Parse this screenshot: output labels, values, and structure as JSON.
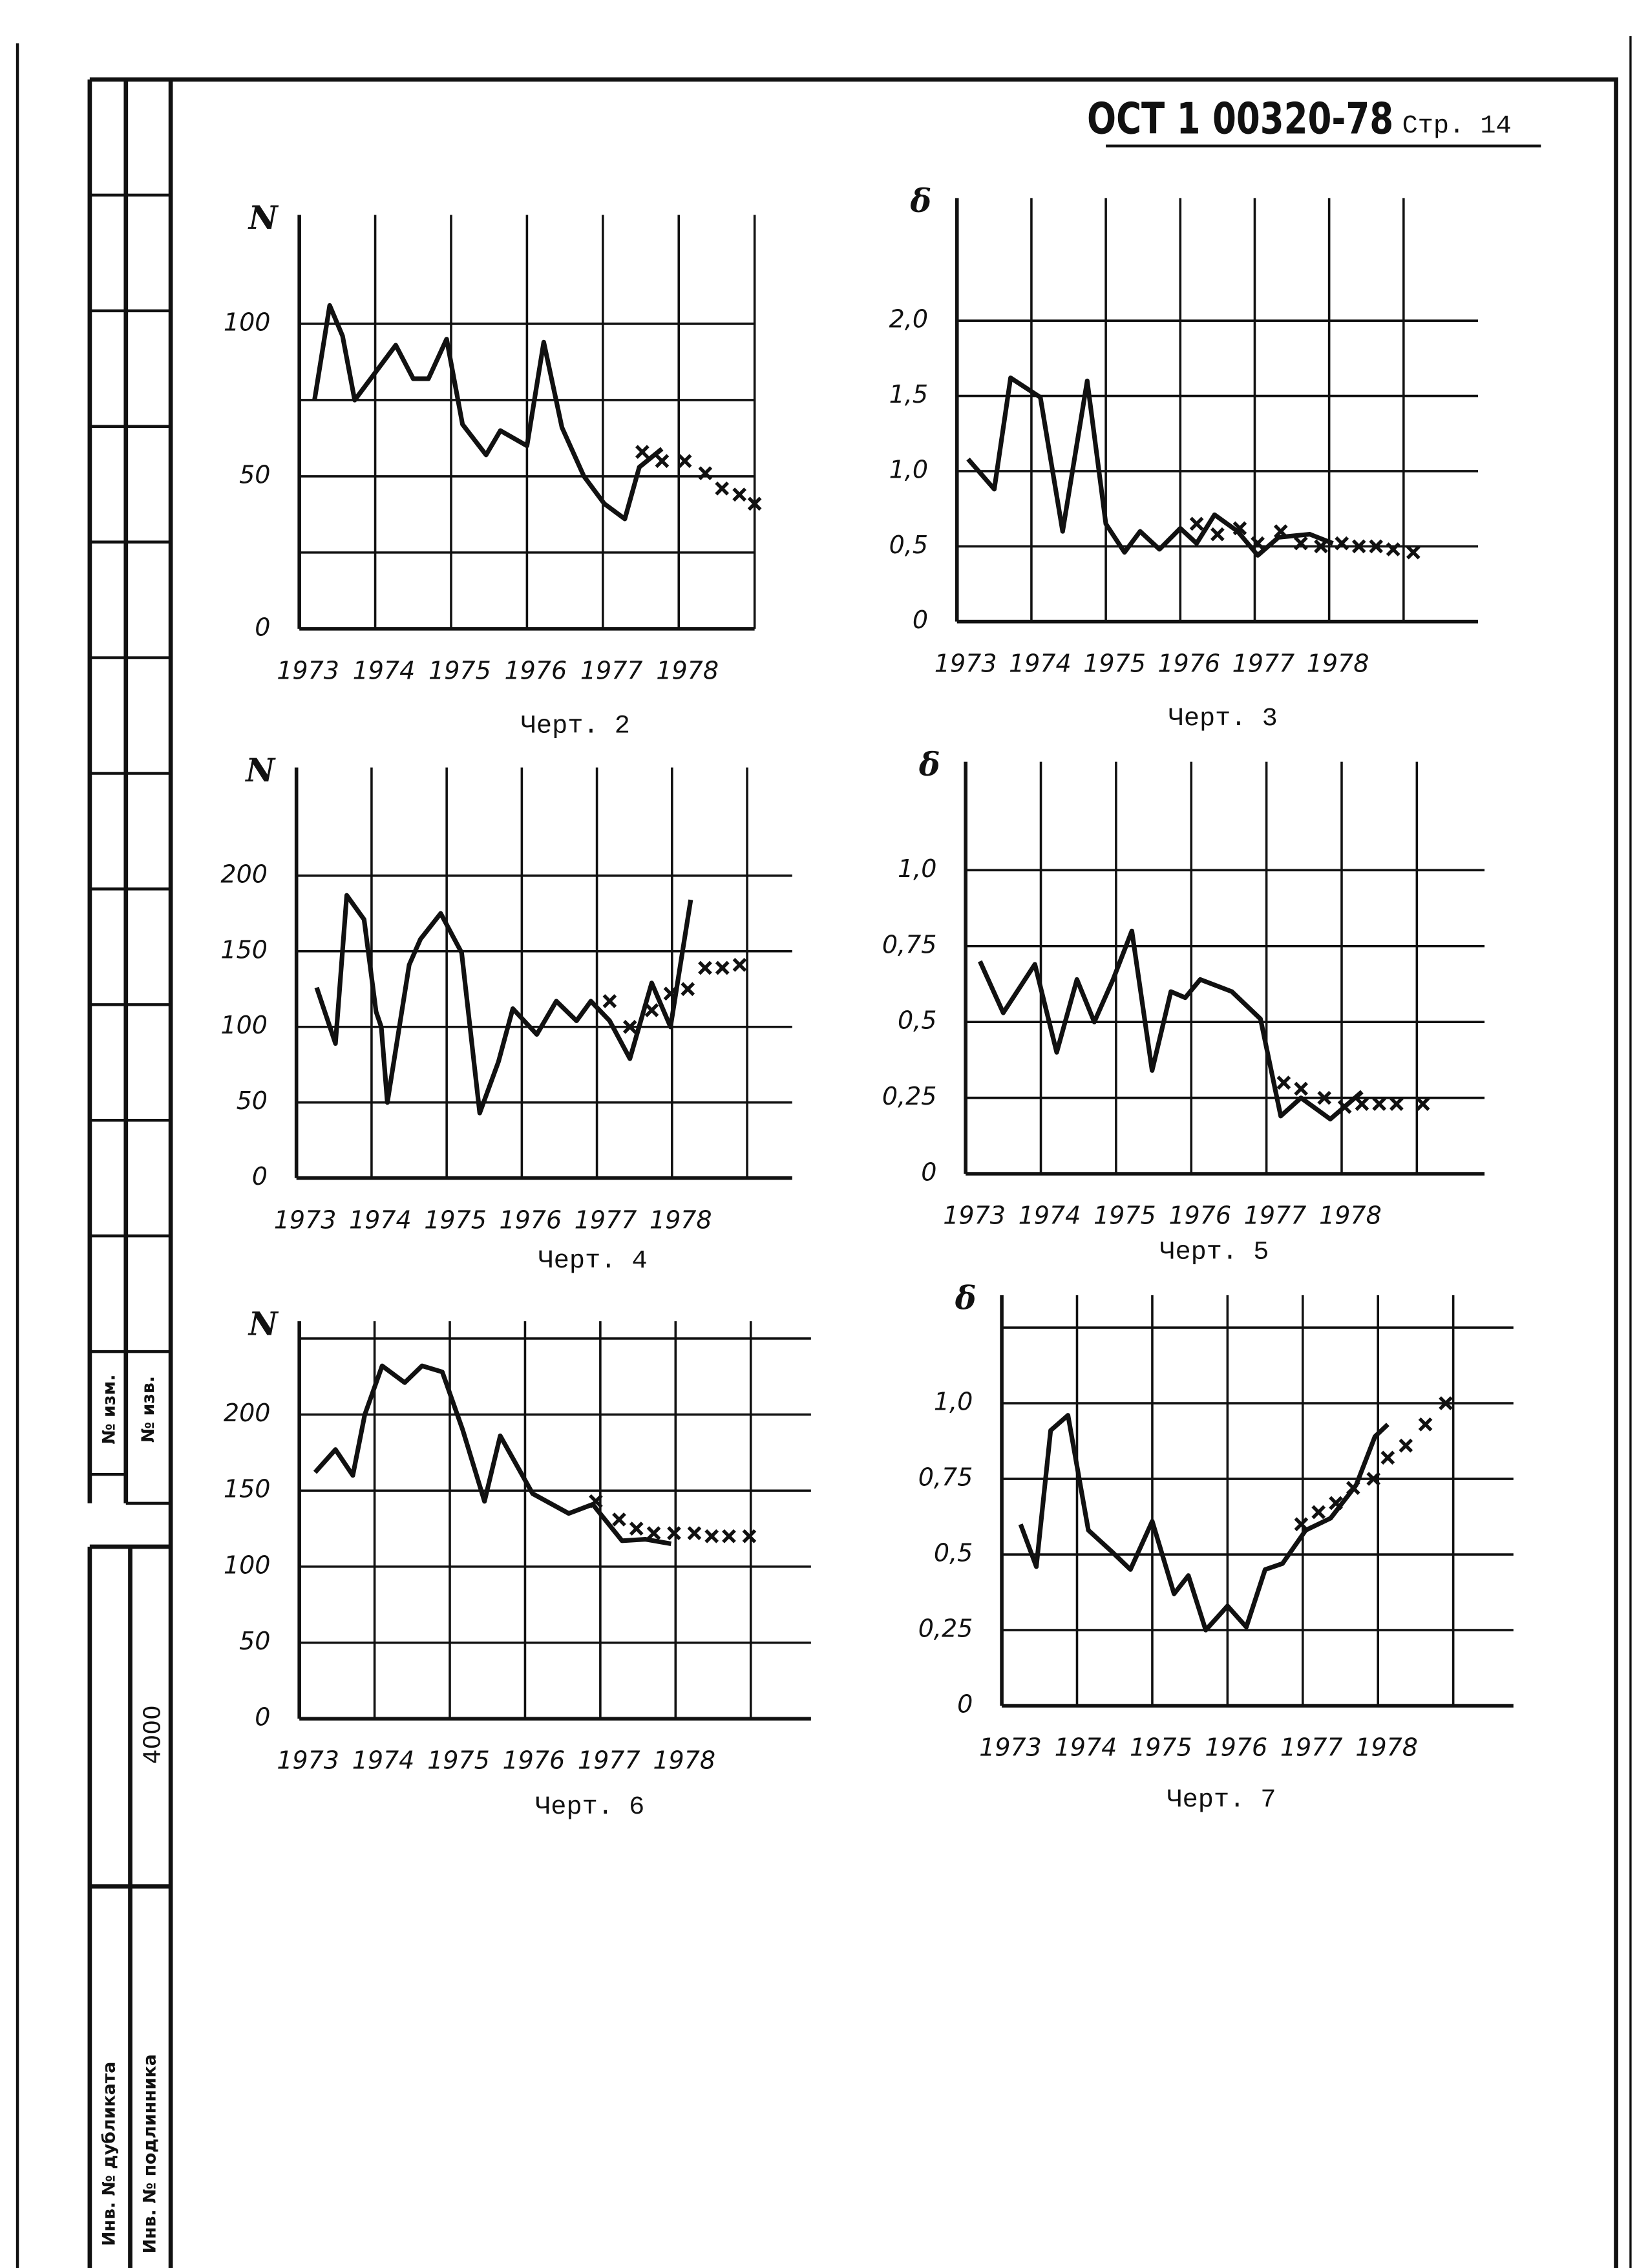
{
  "header": {
    "code": "ОСТ 1 00320-78",
    "page": "Стр. 14"
  },
  "side": {
    "change_no": "№ изм.",
    "notice_no": "№ изв.",
    "number": "4000",
    "dup_inv": "Инв. № дубликата",
    "orig_inv": "Инв. № подлинника"
  },
  "chart_data": [
    {
      "type": "line",
      "title": "Черт. 2",
      "y_label": "N",
      "xlim": [
        1973,
        1979
      ],
      "ylim": [
        0,
        130
      ],
      "xticks": [
        1973,
        1974,
        1975,
        1976,
        1977,
        1978
      ],
      "xgrid": [
        1973,
        1974,
        1975,
        1976,
        1977,
        1978,
        1979
      ],
      "yticks": [
        0,
        50,
        100
      ],
      "ygrid": [
        25,
        75
      ],
      "series": [
        {
          "marker": "line",
          "color": "#111111",
          "x": [
            1973.2,
            1973.4,
            1973.57,
            1973.73,
            1974.27,
            1974.5,
            1974.7,
            1974.94,
            1975.15,
            1975.46,
            1975.65,
            1976.0,
            1976.22,
            1976.46,
            1976.75,
            1977.02,
            1977.29,
            1977.48,
            1977.78
          ],
          "values": [
            75,
            106,
            96,
            75,
            93,
            82,
            82,
            95,
            67,
            57,
            65,
            60,
            94,
            66,
            50,
            41,
            36,
            53,
            59
          ]
        },
        {
          "marker": "cross",
          "color": "#111111",
          "x": [
            1977.52,
            1977.78,
            1978.08,
            1978.35,
            1978.57,
            1978.8,
            1979.0
          ],
          "values": [
            58,
            55,
            55,
            51,
            46,
            44,
            41
          ]
        }
      ]
    },
    {
      "type": "line",
      "title": "Черт. 3",
      "y_label": "δ",
      "xlim": [
        1973,
        1980
      ],
      "ylim": [
        0,
        2.7
      ],
      "xticks": [
        1973,
        1974,
        1975,
        1976,
        1977,
        1978
      ],
      "xgrid": [
        1973,
        1974,
        1975,
        1976,
        1977,
        1978,
        1979
      ],
      "yticks": [
        0,
        {
          "value": 0.5,
          "label": "0,5"
        },
        {
          "value": 1.0,
          "label": "1,0"
        },
        {
          "value": 1.5,
          "label": "1,5"
        },
        {
          "value": 2.0,
          "label": "2,0"
        }
      ],
      "series": [
        {
          "marker": "line",
          "color": "#111111",
          "x": [
            1973.15,
            1973.5,
            1973.72,
            1974.12,
            1974.42,
            1974.75,
            1975.0,
            1975.25,
            1975.46,
            1975.72,
            1976.0,
            1976.22,
            1976.46,
            1976.77,
            1977.04,
            1977.32,
            1977.74,
            1978.05
          ],
          "values": [
            1.08,
            0.88,
            1.62,
            1.49,
            0.6,
            1.6,
            0.65,
            0.46,
            0.6,
            0.48,
            0.62,
            0.52,
            0.71,
            0.6,
            0.44,
            0.56,
            0.58,
            0.52
          ]
        },
        {
          "marker": "cross",
          "color": "#111111",
          "x": [
            1976.22,
            1976.5,
            1976.8,
            1977.04,
            1977.35,
            1977.62,
            1977.89,
            1978.17,
            1978.4,
            1978.63,
            1978.86,
            1979.13
          ],
          "values": [
            0.65,
            0.58,
            0.62,
            0.52,
            0.6,
            0.52,
            0.5,
            0.52,
            0.5,
            0.5,
            0.48,
            0.46
          ]
        }
      ]
    },
    {
      "type": "line",
      "title": "Черт. 4",
      "y_label": "N",
      "xlim": [
        1973,
        1979.6
      ],
      "ylim": [
        0,
        260
      ],
      "xticks": [
        1973,
        1974,
        1975,
        1976,
        1977,
        1978
      ],
      "xgrid": [
        1973,
        1974,
        1975,
        1976,
        1977,
        1978,
        1979
      ],
      "yticks": [
        0,
        50,
        100,
        150,
        200
      ],
      "series": [
        {
          "marker": "line",
          "color": "#111111",
          "x": [
            1973.27,
            1973.52,
            1973.67,
            1973.9,
            1974.06,
            1974.13,
            1974.21,
            1974.37,
            1974.5,
            1974.65,
            1974.92,
            1975.2,
            1975.44,
            1975.69,
            1975.88,
            1976.2,
            1976.46,
            1976.73,
            1976.92,
            1977.17,
            1977.44,
            1977.73,
            1977.98,
            1978.25
          ],
          "values": [
            126,
            89,
            187,
            171,
            110,
            100,
            50,
            100,
            141,
            158,
            175,
            149,
            43,
            77,
            112,
            95,
            117,
            104,
            117,
            104,
            79,
            129,
            100,
            184
          ]
        },
        {
          "marker": "cross",
          "color": "#111111",
          "x": [
            1977.17,
            1977.44,
            1977.73,
            1977.98,
            1978.21,
            1978.44,
            1978.67,
            1978.9
          ],
          "values": [
            117,
            100,
            111,
            122,
            125,
            139,
            139,
            141
          ]
        }
      ]
    },
    {
      "type": "line",
      "title": "Черт. 5",
      "y_label": "δ",
      "xlim": [
        1973,
        1979.9
      ],
      "ylim": [
        0,
        1.3
      ],
      "xticks": [
        1973,
        1974,
        1975,
        1976,
        1977,
        1978
      ],
      "xgrid": [
        1973,
        1974,
        1975,
        1976,
        1977,
        1978,
        1979
      ],
      "yticks": [
        0,
        {
          "value": 0.25,
          "label": "0,25"
        },
        {
          "value": 0.5,
          "label": "0,5"
        },
        {
          "value": 0.75,
          "label": "0,75"
        },
        {
          "value": 1.0,
          "label": "1,0"
        }
      ],
      "series": [
        {
          "marker": "line",
          "color": "#111111",
          "x": [
            1973.19,
            1973.5,
            1973.92,
            1974.21,
            1974.48,
            1974.71,
            1974.96,
            1975.21,
            1975.48,
            1975.73,
            1975.92,
            1976.12,
            1976.54,
            1976.92,
            1977.19,
            1977.46,
            1977.85,
            1978.27
          ],
          "values": [
            0.7,
            0.53,
            0.69,
            0.4,
            0.64,
            0.5,
            0.64,
            0.8,
            0.34,
            0.6,
            0.58,
            0.64,
            0.6,
            0.51,
            0.19,
            0.25,
            0.18,
            0.27
          ]
        },
        {
          "marker": "cross",
          "color": "#111111",
          "x": [
            1977.23,
            1977.46,
            1977.77,
            1978.04,
            1978.27,
            1978.5,
            1978.73,
            1979.08
          ],
          "values": [
            0.3,
            0.28,
            0.25,
            0.22,
            0.23,
            0.23,
            0.23,
            0.23
          ]
        }
      ]
    },
    {
      "type": "line",
      "title": "Черт. 6",
      "y_label": "N",
      "xlim": [
        1973,
        1979.8
      ],
      "ylim": [
        0,
        250
      ],
      "xticks": [
        1973,
        1974,
        1975,
        1976,
        1977,
        1978
      ],
      "xgrid": [
        1973,
        1974,
        1975,
        1976,
        1977,
        1978,
        1979
      ],
      "yticks": [
        0,
        50,
        100,
        150,
        200
      ],
      "ygrid": [
        250
      ],
      "series": [
        {
          "marker": "line",
          "color": "#111111",
          "x": [
            1973.21,
            1973.48,
            1973.71,
            1973.87,
            1974.1,
            1974.4,
            1974.63,
            1974.9,
            1975.17,
            1975.46,
            1975.67,
            1976.1,
            1976.58,
            1976.9,
            1977.29,
            1977.6,
            1977.94
          ],
          "values": [
            162,
            177,
            160,
            200,
            232,
            221,
            232,
            228,
            190,
            143,
            186,
            148,
            135,
            141,
            117,
            118,
            115
          ]
        },
        {
          "marker": "cross",
          "color": "#111111",
          "x": [
            1976.94,
            1977.25,
            1977.48,
            1977.71,
            1977.98,
            1978.25,
            1978.48,
            1978.71,
            1978.98
          ],
          "values": [
            143,
            131,
            125,
            122,
            122,
            122,
            120,
            120,
            120
          ]
        }
      ]
    },
    {
      "type": "line",
      "title": "Черт. 7",
      "y_label": "δ",
      "xlim": [
        1973,
        1979.8
      ],
      "ylim": [
        0,
        1.3
      ],
      "xticks": [
        1973,
        1974,
        1975,
        1976,
        1977,
        1978
      ],
      "xgrid": [
        1973,
        1974,
        1975,
        1976,
        1977,
        1978,
        1979
      ],
      "yticks": [
        0,
        {
          "value": 0.25,
          "label": "0,25"
        },
        {
          "value": 0.5,
          "label": "0,5"
        },
        {
          "value": 0.75,
          "label": "0,75"
        },
        {
          "value": 1.0,
          "label": "1,0"
        }
      ],
      "ygrid": [
        1.25
      ],
      "series": [
        {
          "marker": "line",
          "color": "#111111",
          "x": [
            1973.25,
            1973.46,
            1973.65,
            1973.88,
            1974.15,
            1974.46,
            1974.71,
            1975.0,
            1975.29,
            1975.48,
            1975.71,
            1976.0,
            1976.25,
            1976.5,
            1976.73,
            1977.04,
            1977.37,
            1977.71,
            1977.96,
            1978.13
          ],
          "values": [
            0.6,
            0.46,
            0.91,
            0.96,
            0.58,
            0.51,
            0.45,
            0.61,
            0.37,
            0.43,
            0.25,
            0.33,
            0.26,
            0.45,
            0.47,
            0.58,
            0.62,
            0.73,
            0.89,
            0.93
          ]
        },
        {
          "marker": "cross",
          "color": "#111111",
          "x": [
            1976.98,
            1977.21,
            1977.44,
            1977.67,
            1977.94,
            1978.13,
            1978.37,
            1978.63,
            1978.9
          ],
          "values": [
            0.6,
            0.64,
            0.67,
            0.72,
            0.75,
            0.82,
            0.86,
            0.93,
            1.0
          ]
        }
      ]
    }
  ]
}
